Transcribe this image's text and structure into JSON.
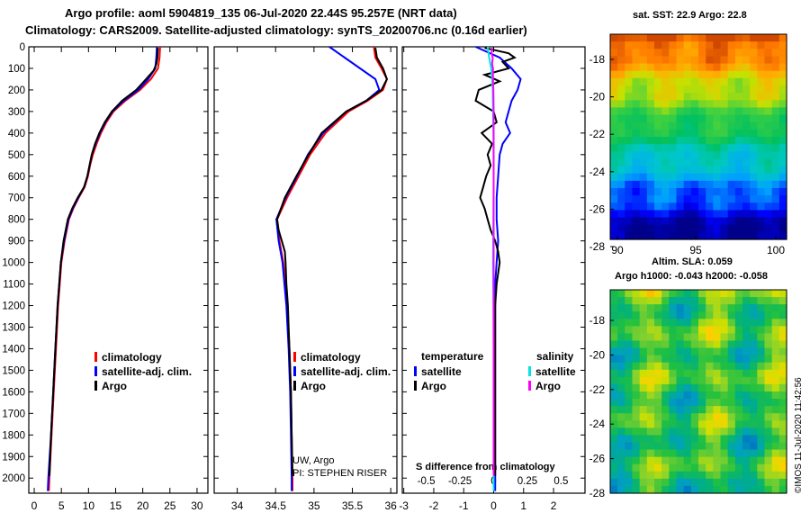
{
  "header": {
    "line1": "Argo profile: aoml 5904819_135 06-Jul-2020 22.44S 95.257E (NRT data)",
    "line2": "Climatology: CARS2009. Satellite-adjusted climatology: synTS_20200706.nc (0.16d earlier)"
  },
  "maps": {
    "sst_title": "sat. SST: 22.9 Argo: 22.8",
    "sla_line1": "Altim. SLA: 0.059",
    "sla_line2": "Argo h1000: -0.043 h2000: -0.058",
    "lat_ticks": [
      "-18",
      "-20",
      "-22",
      "-24",
      "-26",
      "-28"
    ],
    "lon_ticks": [
      "90",
      "95",
      "100"
    ]
  },
  "annotations": {
    "credit1": "UW, Argo",
    "credit2": "PI: STEPHEN RISER",
    "s_diff_label": "S difference from climatology",
    "watermark": "©IMOS 11-Jul-2020 11:42:56"
  },
  "colors": {
    "climatology": "#ff0000",
    "satellite_adj": "#0000ff",
    "argo": "#000000",
    "satellite_sal": "#00e5e5",
    "argo_sal": "#ff00ff"
  },
  "chart_data": [
    {
      "type": "line",
      "panel": "temperature",
      "y_ticks": [
        "0",
        "100",
        "200",
        "300",
        "400",
        "500",
        "600",
        "700",
        "800",
        "900",
        "1000",
        "1100",
        "1200",
        "1300",
        "1400",
        "1500",
        "1600",
        "1700",
        "1800",
        "1900",
        "2000"
      ],
      "x_ticks": [
        "0",
        "5",
        "10",
        "15",
        "20",
        "25",
        "30"
      ],
      "xlim": [
        -1,
        32
      ],
      "ylim": [
        2070,
        0
      ],
      "legend": [
        "climatology",
        "satellite-adj. clim.",
        "Argo"
      ],
      "series": [
        {
          "name": "climatology",
          "color": "#ff0000",
          "depth": [
            0,
            50,
            100,
            150,
            200,
            250,
            300,
            350,
            400,
            450,
            500,
            550,
            600,
            650,
            700,
            750,
            800,
            900,
            1000,
            1200,
            1400,
            1600,
            1800,
            2000,
            2060
          ],
          "values": [
            23.2,
            23.1,
            22.8,
            21.5,
            19.5,
            16.8,
            14.6,
            13.3,
            12.3,
            11.5,
            10.8,
            10.3,
            9.9,
            9.3,
            8.2,
            7.2,
            6.4,
            5.6,
            5.0,
            4.4,
            4.0,
            3.6,
            3.2,
            2.8,
            2.7
          ]
        },
        {
          "name": "satellite-adj. clim.",
          "color": "#0000ff",
          "depth": [
            0,
            50,
            100,
            150,
            200,
            250,
            300,
            350,
            400,
            450,
            500,
            550,
            600,
            650,
            700,
            750,
            800,
            900,
            1000,
            1200,
            1400,
            1600,
            1800,
            2000,
            2060
          ],
          "values": [
            22.6,
            22.5,
            22.3,
            21.0,
            19.2,
            16.5,
            14.4,
            13.1,
            12.1,
            11.3,
            10.6,
            10.2,
            9.8,
            9.2,
            8.1,
            7.1,
            6.3,
            5.5,
            4.9,
            4.3,
            3.9,
            3.5,
            3.1,
            2.6,
            2.5
          ]
        },
        {
          "name": "Argo",
          "color": "#000000",
          "depth": [
            5,
            50,
            80,
            110,
            150,
            200,
            250,
            300,
            350,
            400,
            450,
            500,
            550,
            600,
            650,
            700,
            750,
            800,
            900,
            1000,
            1200,
            1400,
            1600,
            1800,
            1990
          ],
          "values": [
            22.8,
            22.7,
            22.5,
            22.0,
            20.6,
            18.8,
            16.2,
            14.3,
            13.0,
            12.0,
            11.2,
            10.6,
            10.2,
            9.8,
            9.2,
            8.0,
            7.0,
            6.2,
            5.4,
            4.9,
            4.3,
            3.9,
            3.5,
            3.1,
            2.8
          ]
        }
      ]
    },
    {
      "type": "line",
      "panel": "salinity",
      "x_ticks": [
        "34",
        "34.5",
        "35",
        "35.5",
        "36"
      ],
      "xlim": [
        33.7,
        36.08
      ],
      "ylim": [
        2070,
        0
      ],
      "legend": [
        "climatology",
        "satellite-adj. clim.",
        "Argo"
      ],
      "series": [
        {
          "name": "climatology",
          "color": "#ff0000",
          "depth": [
            0,
            50,
            100,
            150,
            200,
            250,
            300,
            400,
            500,
            600,
            700,
            800,
            900,
            1000,
            1200,
            1400,
            1600,
            1800,
            2000,
            2060
          ],
          "values": [
            35.78,
            35.8,
            35.88,
            35.95,
            35.9,
            35.7,
            35.45,
            35.15,
            34.95,
            34.8,
            34.65,
            34.52,
            34.55,
            34.6,
            34.65,
            34.68,
            34.7,
            34.71,
            34.72,
            34.72
          ]
        },
        {
          "name": "satellite-adj. clim.",
          "color": "#0000ff",
          "depth": [
            0,
            50,
            100,
            150,
            200,
            250,
            300,
            400,
            500,
            600,
            700,
            800,
            900,
            1000,
            1200,
            1400,
            1600,
            1800,
            2000,
            2060
          ],
          "values": [
            35.2,
            35.4,
            35.6,
            35.8,
            35.85,
            35.68,
            35.42,
            35.12,
            34.92,
            34.78,
            34.63,
            34.51,
            34.54,
            34.59,
            34.64,
            34.67,
            34.69,
            34.7,
            34.71,
            34.71
          ]
        },
        {
          "name": "Argo",
          "color": "#000000",
          "depth": [
            5,
            50,
            100,
            150,
            200,
            250,
            300,
            400,
            500,
            600,
            700,
            800,
            850,
            900,
            950,
            1000,
            1100,
            1200,
            1300,
            1400,
            1600,
            1800,
            1990
          ],
          "values": [
            35.8,
            35.82,
            35.9,
            35.95,
            35.88,
            35.68,
            35.42,
            35.1,
            34.93,
            34.77,
            34.62,
            34.52,
            34.54,
            34.58,
            34.62,
            34.63,
            34.64,
            34.66,
            34.67,
            34.68,
            34.7,
            34.71,
            34.72
          ]
        }
      ]
    },
    {
      "type": "line",
      "panel": "difference",
      "x_ticks": [
        "-3",
        "-2",
        "-1",
        "0",
        "1",
        "2"
      ],
      "x_ticks_salinity": [
        "-0.5",
        "-0.25",
        "0",
        "0.25",
        "0.5"
      ],
      "xlim": [
        -3.05,
        3.05
      ],
      "ylim": [
        2070,
        0
      ],
      "legend_headers": [
        "temperature",
        "salinity"
      ],
      "legend": [
        "satellite",
        "Argo",
        "satellite",
        "Argo"
      ],
      "series": [
        {
          "name": "temperature satellite",
          "color": "#0000ff",
          "depth": [
            0,
            50,
            100,
            150,
            200,
            250,
            300,
            350,
            400,
            450,
            500,
            600,
            700,
            800,
            900,
            1000,
            1100,
            1200,
            1400,
            1600,
            1800,
            2000,
            2060
          ],
          "values": [
            -0.6,
            0.2,
            0.6,
            0.9,
            0.8,
            0.6,
            0.5,
            0.4,
            0.55,
            0.3,
            0.2,
            0.15,
            0.1,
            0.1,
            0.15,
            0.1,
            0.05,
            0.05,
            0.05,
            0.05,
            0.05,
            0.05,
            0.05
          ]
        },
        {
          "name": "temperature Argo",
          "color": "#000000",
          "depth": [
            5,
            30,
            50,
            70,
            100,
            130,
            160,
            200,
            250,
            300,
            350,
            400,
            450,
            500,
            550,
            600,
            650,
            700,
            750,
            800,
            850,
            900,
            950,
            1000,
            1100,
            1200,
            1400,
            1600,
            1800,
            1990
          ],
          "values": [
            -0.3,
            0.5,
            0.7,
            0.3,
            0.5,
            -0.3,
            0.2,
            -0.5,
            -0.6,
            0.0,
            0.1,
            -0.4,
            -0.05,
            -0.2,
            -0.1,
            -0.25,
            -0.35,
            -0.45,
            -0.3,
            -0.2,
            -0.1,
            0.05,
            0.15,
            0.2,
            0.1,
            0.05,
            0.05,
            0.05,
            0.05,
            0.05
          ]
        },
        {
          "name": "salinity satellite",
          "color": "#00e5e5",
          "depth": [
            0,
            50,
            100,
            150,
            200,
            300,
            400,
            600,
            800,
            1000,
            1200,
            1400,
            1600,
            1800,
            2000,
            2060
          ],
          "values": [
            -0.2,
            -0.15,
            -0.08,
            -0.05,
            -0.03,
            -0.02,
            -0.01,
            0.0,
            -0.01,
            -0.02,
            -0.01,
            0.0,
            0.0,
            0.0,
            0.0,
            0.0
          ]
        },
        {
          "name": "salinity Argo",
          "color": "#ff00ff",
          "depth": [
            5,
            30,
            50,
            80,
            100,
            150,
            200,
            300,
            400,
            600,
            800,
            1000,
            1200,
            1400,
            1600,
            1800,
            1990
          ],
          "values": [
            -0.05,
            -0.07,
            -0.03,
            -0.05,
            -0.02,
            -0.02,
            -0.01,
            0.0,
            0.0,
            0.0,
            0.0,
            0.0,
            0.0,
            0.0,
            0.0,
            0.0,
            0.0
          ]
        }
      ]
    }
  ]
}
